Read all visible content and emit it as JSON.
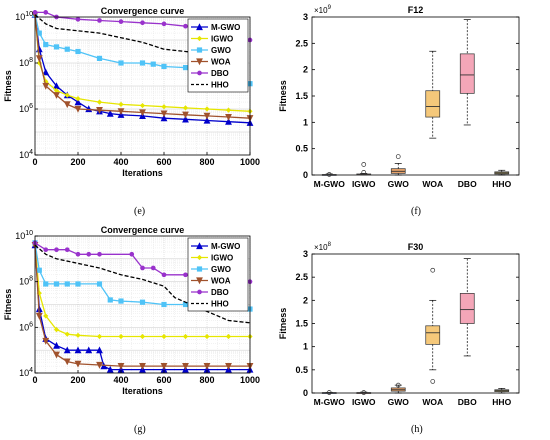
{
  "captions": {
    "e": "(e)",
    "f": "(f)",
    "g": "(g)",
    "h": "(h)"
  },
  "chart_data": [
    {
      "id": "e",
      "type": "line",
      "title": "Convergence curve",
      "xlabel": "Iterations",
      "ylabel": "Fitness",
      "yscale": "log",
      "xlim": [
        0,
        1000
      ],
      "ylim_exp": [
        4,
        10
      ],
      "xticks": [
        "0",
        "200",
        "400",
        "600",
        "800",
        "1000"
      ],
      "yticks": [
        "10^4",
        "10^6",
        "10^8",
        "10^10"
      ],
      "grid": true,
      "legend_position": "top-right",
      "series": [
        {
          "name": "M-GWO",
          "color": "#0000cc",
          "marker": "triangle",
          "x": [
            0,
            20,
            50,
            100,
            150,
            200,
            250,
            300,
            350,
            400,
            500,
            600,
            700,
            800,
            900,
            1000
          ],
          "log10y": [
            10.1,
            8.6,
            7.6,
            7.0,
            6.6,
            6.3,
            6.0,
            5.9,
            5.8,
            5.75,
            5.7,
            5.6,
            5.55,
            5.5,
            5.45,
            5.4
          ]
        },
        {
          "name": "IGWO",
          "color": "#e6e600",
          "marker": "diamond",
          "x": [
            0,
            20,
            50,
            100,
            150,
            200,
            300,
            400,
            500,
            600,
            700,
            800,
            900,
            1000
          ],
          "log10y": [
            10.1,
            8.0,
            7.2,
            6.8,
            6.6,
            6.45,
            6.3,
            6.2,
            6.15,
            6.1,
            6.05,
            6.0,
            5.95,
            5.9
          ]
        },
        {
          "name": "GWO",
          "color": "#4fc3f7",
          "marker": "square",
          "x": [
            0,
            20,
            50,
            100,
            150,
            200,
            300,
            400,
            500,
            550,
            600,
            700,
            800,
            900,
            950,
            1000
          ],
          "log10y": [
            10.1,
            9.3,
            8.8,
            8.7,
            8.6,
            8.5,
            8.2,
            8.0,
            8.0,
            7.95,
            7.85,
            7.8,
            7.7,
            7.5,
            7.3,
            7.1
          ]
        },
        {
          "name": "WOA",
          "color": "#a0522d",
          "marker": "triangle-down",
          "x": [
            0,
            20,
            50,
            100,
            150,
            200,
            300,
            400,
            500,
            600,
            700,
            800,
            900,
            1000
          ],
          "log10y": [
            10.1,
            8.2,
            7.0,
            6.6,
            6.2,
            6.0,
            5.95,
            5.9,
            5.85,
            5.8,
            5.75,
            5.7,
            5.65,
            5.6
          ]
        },
        {
          "name": "DBO",
          "color": "#9932cc",
          "marker": "circle",
          "x": [
            0,
            50,
            100,
            200,
            300,
            400,
            500,
            600,
            700,
            800,
            900,
            1000
          ],
          "log10y": [
            10.2,
            10.2,
            10.0,
            9.9,
            9.85,
            9.8,
            9.75,
            9.7,
            9.6,
            9.5,
            9.2,
            9.0
          ]
        },
        {
          "name": "HHO",
          "color": "#000000",
          "marker": "none",
          "dash": true,
          "x": [
            0,
            50,
            100,
            200,
            300,
            400,
            500,
            600,
            700,
            800,
            900,
            1000
          ],
          "log10y": [
            10.1,
            9.7,
            9.5,
            9.4,
            9.3,
            9.1,
            8.9,
            8.6,
            8.5,
            8.4,
            8.3,
            8.2
          ]
        }
      ]
    },
    {
      "id": "f",
      "type": "box",
      "title": "F12",
      "ylabel": "Fitness",
      "exponent_label": "×10^9",
      "ylim": [
        0,
        3
      ],
      "yticks": [
        "0",
        "0.5",
        "1",
        "1.5",
        "2",
        "2.5",
        "3"
      ],
      "categories": [
        "M-GWO",
        "IGWO",
        "GWO",
        "WOA",
        "DBO",
        "HHO"
      ],
      "boxes": [
        {
          "name": "M-GWO",
          "color": "#1f3b99",
          "min": 0.0,
          "q1": 0.0,
          "median": 0.005,
          "q3": 0.01,
          "max": 0.02,
          "outliers": [
            0.01
          ]
        },
        {
          "name": "IGWO",
          "color": "#7a1f1f",
          "min": 0.0,
          "q1": 0.0,
          "median": 0.01,
          "q3": 0.02,
          "max": 0.03,
          "outliers": [
            0.2,
            0.05
          ]
        },
        {
          "name": "GWO",
          "color": "#e8a36a",
          "min": 0.0,
          "q1": 0.03,
          "median": 0.07,
          "q3": 0.12,
          "max": 0.22,
          "outliers": [
            0.35
          ]
        },
        {
          "name": "WOA",
          "color": "#f5c87a",
          "min": 0.7,
          "q1": 1.1,
          "median": 1.3,
          "q3": 1.6,
          "max": 2.35,
          "outliers": []
        },
        {
          "name": "DBO",
          "color": "#f4a6b8",
          "min": 0.95,
          "q1": 1.55,
          "median": 1.9,
          "q3": 2.3,
          "max": 2.95,
          "outliers": []
        },
        {
          "name": "HHO",
          "color": "#c8b66a",
          "min": 0.0,
          "q1": 0.02,
          "median": 0.04,
          "q3": 0.06,
          "max": 0.09,
          "outliers": []
        }
      ]
    },
    {
      "id": "g",
      "type": "line",
      "title": "Convergence curve",
      "xlabel": "Iterations",
      "ylabel": "Fitness",
      "yscale": "log",
      "xlim": [
        0,
        1000
      ],
      "ylim_exp": [
        4,
        10
      ],
      "xticks": [
        "0",
        "200",
        "400",
        "600",
        "800",
        "1000"
      ],
      "yticks": [
        "10^4",
        "10^6",
        "10^8",
        "10^10"
      ],
      "grid": true,
      "legend_position": "top-right",
      "series": [
        {
          "name": "M-GWO",
          "color": "#0000cc",
          "marker": "triangle",
          "x": [
            0,
            20,
            50,
            100,
            150,
            200,
            250,
            300,
            320,
            350,
            400,
            500,
            600,
            700,
            800,
            900,
            1000
          ],
          "log10y": [
            9.6,
            6.8,
            5.5,
            5.2,
            5.0,
            5.0,
            5.0,
            5.0,
            4.3,
            4.15,
            4.15,
            4.15,
            4.15,
            4.15,
            4.15,
            4.15,
            4.15
          ]
        },
        {
          "name": "IGWO",
          "color": "#e6e600",
          "marker": "diamond",
          "x": [
            0,
            20,
            50,
            100,
            150,
            200,
            300,
            400,
            500,
            600,
            700,
            800,
            900,
            1000
          ],
          "log10y": [
            9.6,
            7.5,
            6.5,
            5.9,
            5.7,
            5.65,
            5.6,
            5.6,
            5.6,
            5.6,
            5.6,
            5.6,
            5.6,
            5.6
          ]
        },
        {
          "name": "GWO",
          "color": "#4fc3f7",
          "marker": "square",
          "x": [
            0,
            20,
            50,
            100,
            150,
            200,
            300,
            350,
            400,
            500,
            600,
            700,
            800,
            900,
            1000
          ],
          "log10y": [
            9.7,
            8.5,
            7.9,
            7.9,
            7.9,
            7.9,
            7.9,
            7.2,
            7.15,
            7.1,
            7.0,
            7.0,
            6.9,
            6.85,
            6.8
          ]
        },
        {
          "name": "WOA",
          "color": "#a0522d",
          "marker": "triangle-down",
          "x": [
            0,
            20,
            50,
            100,
            150,
            200,
            300,
            400,
            500,
            600,
            700,
            800,
            900,
            1000
          ],
          "log10y": [
            9.6,
            6.5,
            5.4,
            4.8,
            4.5,
            4.4,
            4.35,
            4.3,
            4.3,
            4.3,
            4.3,
            4.3,
            4.3,
            4.3
          ]
        },
        {
          "name": "DBO",
          "color": "#9932cc",
          "marker": "circle",
          "x": [
            0,
            50,
            100,
            150,
            200,
            250,
            300,
            450,
            500,
            550,
            600,
            700,
            800,
            900,
            1000
          ],
          "log10y": [
            9.7,
            9.4,
            9.4,
            9.4,
            9.2,
            9.2,
            9.2,
            9.2,
            8.6,
            8.6,
            8.3,
            8.3,
            8.1,
            8.05,
            8.0
          ]
        },
        {
          "name": "HHO",
          "color": "#000000",
          "marker": "none",
          "dash": true,
          "x": [
            0,
            50,
            100,
            200,
            300,
            400,
            500,
            600,
            650,
            700,
            800,
            900,
            1000
          ],
          "log10y": [
            9.6,
            9.2,
            9.0,
            8.8,
            8.6,
            8.3,
            8.1,
            7.8,
            7.3,
            7.1,
            6.7,
            6.3,
            6.2
          ]
        }
      ]
    },
    {
      "id": "h",
      "type": "box",
      "title": "F30",
      "ylabel": "Fitness",
      "exponent_label": "×10^8",
      "ylim": [
        0,
        3
      ],
      "yticks": [
        "0",
        "0.5",
        "1",
        "1.5",
        "2",
        "2.5",
        "3"
      ],
      "categories": [
        "M-GWO",
        "IGWO",
        "GWO",
        "WOA",
        "DBO",
        "HHO"
      ],
      "boxes": [
        {
          "name": "M-GWO",
          "color": "#1f3b99",
          "min": 0.0,
          "q1": 0.0,
          "median": 0.005,
          "q3": 0.01,
          "max": 0.015,
          "outliers": [
            0.01
          ]
        },
        {
          "name": "IGWO",
          "color": "#7a1f1f",
          "min": 0.0,
          "q1": 0.0,
          "median": 0.005,
          "q3": 0.01,
          "max": 0.02,
          "outliers": [
            0.01
          ]
        },
        {
          "name": "GWO",
          "color": "#e8a36a",
          "min": 0.0,
          "q1": 0.04,
          "median": 0.07,
          "q3": 0.11,
          "max": 0.17,
          "outliers": [
            0.17
          ]
        },
        {
          "name": "WOA",
          "color": "#f5c87a",
          "min": 0.5,
          "q1": 1.05,
          "median": 1.3,
          "q3": 1.45,
          "max": 2.0,
          "outliers": [
            2.65,
            0.25
          ]
        },
        {
          "name": "DBO",
          "color": "#f4a6b8",
          "min": 0.8,
          "q1": 1.5,
          "median": 1.8,
          "q3": 2.15,
          "max": 2.9,
          "outliers": []
        },
        {
          "name": "HHO",
          "color": "#c8b66a",
          "min": 0.0,
          "q1": 0.03,
          "median": 0.05,
          "q3": 0.07,
          "max": 0.1,
          "outliers": []
        }
      ]
    }
  ]
}
